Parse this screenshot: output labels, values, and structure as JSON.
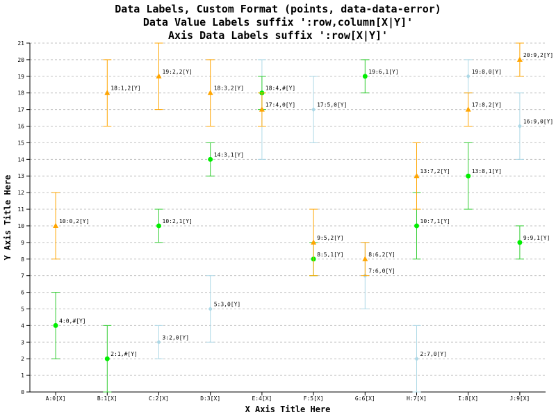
{
  "chart_data": {
    "type": "scatter",
    "title": [
      "Data Labels, Custom Format (points, data-data-error)",
      "Data Value Labels suffix ':row,column[X|Y]'",
      "Axis Data Labels suffix ':row[X|Y]'"
    ],
    "xlabel": "X Axis Title Here",
    "ylabel": "Y Axis Title Here",
    "ylim": [
      0,
      21
    ],
    "xlim": [
      -0.5,
      9.5
    ],
    "y_ticks": [
      0,
      1,
      2,
      3,
      4,
      5,
      6,
      7,
      8,
      9,
      10,
      11,
      12,
      13,
      14,
      15,
      16,
      17,
      18,
      19,
      20,
      21
    ],
    "grid": "horizontal-dashed",
    "legend": "none",
    "categories": [
      "A:0[X]",
      "B:1[X]",
      "C:2[X]",
      "D:3[X]",
      "E:4[X]",
      "F:5[X]",
      "G:6[X]",
      "H:7[X]",
      "I:8[X]",
      "J:9[X]"
    ],
    "series": [
      {
        "marker": "diamond",
        "color": "#add8e6",
        "points": [
          {
            "x": 2,
            "y": 3,
            "err": 1,
            "label": "3:2,0[Y]"
          },
          {
            "x": 3,
            "y": 5,
            "err": 2,
            "label": "5:3,0[Y]"
          },
          {
            "x": 4,
            "y": 17,
            "err": 3,
            "label": "17:4,0[Y]"
          },
          {
            "x": 5,
            "y": 17,
            "err": 2,
            "label": "17:5,0[Y]"
          },
          {
            "x": 6,
            "y": 7,
            "err": 2,
            "label": "7:6,0[Y]"
          },
          {
            "x": 7,
            "y": 2,
            "err": 2,
            "label": "2:7,0[Y]"
          },
          {
            "x": 8,
            "y": 19,
            "err": 1,
            "label": "19:8,0[Y]"
          },
          {
            "x": 9,
            "y": 16,
            "err": 2,
            "label": "16:9,0[Y]"
          }
        ]
      },
      {
        "marker": "circle",
        "color": "#00ee00",
        "errcolor": "#32cd32",
        "points": [
          {
            "x": 0,
            "y": 4,
            "err": 2,
            "label": "4:0,#[Y]"
          },
          {
            "x": 1,
            "y": 2,
            "err": 2,
            "label": "2:1,#[Y]"
          },
          {
            "x": 2,
            "y": 10,
            "err": 1,
            "label": "10:2,1[Y]"
          },
          {
            "x": 3,
            "y": 14,
            "err": 1,
            "label": "14:3,1[Y]"
          },
          {
            "x": 4,
            "y": 18,
            "err": 1,
            "label": "18:4,#[Y]"
          },
          {
            "x": 5,
            "y": 8,
            "err": 1,
            "label": "8:5,1[Y]"
          },
          {
            "x": 6,
            "y": 19,
            "err": 1,
            "label": "19:6,1[Y]"
          },
          {
            "x": 7,
            "y": 10,
            "err": 2,
            "label": "10:7,1[Y]"
          },
          {
            "x": 8,
            "y": 13,
            "err": 2,
            "label": "13:8,1[Y]"
          },
          {
            "x": 9,
            "y": 9,
            "err": 1,
            "label": "9:9,1[Y]"
          }
        ]
      },
      {
        "marker": "triangle",
        "color": "#ffa500",
        "points": [
          {
            "x": 0,
            "y": 10,
            "err": 2,
            "label": "10:0,2[Y]"
          },
          {
            "x": 1,
            "y": 18,
            "err": 2,
            "label": "18:1,2[Y]"
          },
          {
            "x": 2,
            "y": 19,
            "err": 2,
            "label": "19:2,2[Y]"
          },
          {
            "x": 3,
            "y": 18,
            "err": 2,
            "label": "18:3,2[Y]"
          },
          {
            "x": 4,
            "y": 17,
            "err": 1,
            "label": ""
          },
          {
            "x": 5,
            "y": 9,
            "err": 2,
            "label": "9:5,2[Y]"
          },
          {
            "x": 6,
            "y": 8,
            "err": 1,
            "label": "8:6,2[Y]"
          },
          {
            "x": 7,
            "y": 13,
            "err": 2,
            "label": "13:7,2[Y]"
          },
          {
            "x": 8,
            "y": 17,
            "err": 1,
            "label": "17:8,2[Y]"
          },
          {
            "x": 9,
            "y": 20,
            "err": 1,
            "label": "20:9,2[Y]"
          }
        ]
      }
    ]
  }
}
